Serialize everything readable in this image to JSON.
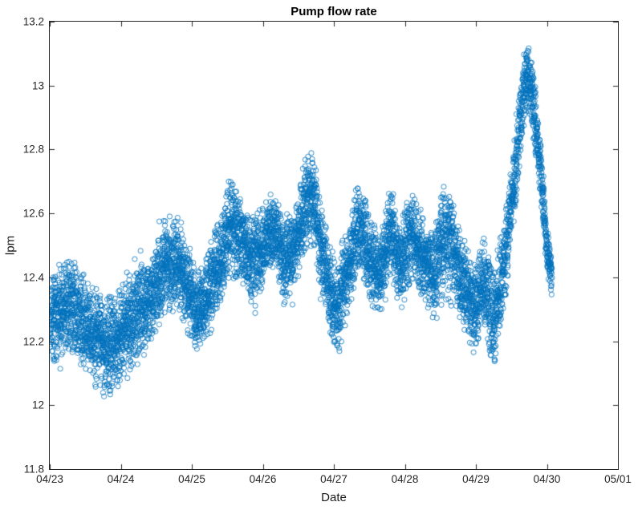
{
  "chart_data": {
    "type": "scatter",
    "title": "Pump flow rate",
    "xlabel": "Date",
    "ylabel": "lpm",
    "marker": {
      "shape": "open-circle",
      "color": "#0072BD",
      "radius_px": 3.1
    },
    "axis_color": "#262626",
    "x_tick_labels": [
      "04/23",
      "04/24",
      "04/25",
      "04/26",
      "04/27",
      "04/28",
      "04/29",
      "04/30",
      "05/01"
    ],
    "x_range_days": [
      0,
      8
    ],
    "y_ticks": [
      11.8,
      12,
      12.2,
      12.4,
      12.6,
      12.8,
      13,
      13.2
    ],
    "y_tick_labels": [
      "11.8",
      "12",
      "12.2",
      "12.4",
      "12.6",
      "12.8",
      "13",
      "13.2"
    ],
    "ylim": [
      11.8,
      13.2
    ],
    "grid": false,
    "legend": "none",
    "n_points": 7000,
    "data_span_days": [
      0,
      7.07
    ],
    "trend": {
      "comment": "Envelope of the dense noisy scatter: t in days after 04/23, center value (lpm) and half-spread (lpm). Points are distributed around mean within +/- ~1.2*spread.",
      "t_days": [
        0.0,
        0.15,
        0.3,
        0.45,
        0.6,
        0.8,
        1.0,
        1.2,
        1.4,
        1.6,
        1.75,
        1.9,
        2.05,
        2.2,
        2.4,
        2.55,
        2.7,
        2.85,
        3.0,
        3.15,
        3.3,
        3.45,
        3.6,
        3.7,
        3.8,
        3.95,
        4.05,
        4.2,
        4.35,
        4.5,
        4.65,
        4.8,
        4.95,
        5.1,
        5.25,
        5.4,
        5.55,
        5.7,
        5.85,
        6.0,
        6.1,
        6.25,
        6.4,
        6.55,
        6.65,
        6.72,
        6.8,
        6.9,
        7.0,
        7.07
      ],
      "mean_lpm": [
        12.27,
        12.29,
        12.31,
        12.27,
        12.22,
        12.17,
        12.22,
        12.27,
        12.33,
        12.42,
        12.46,
        12.4,
        12.29,
        12.33,
        12.45,
        12.57,
        12.5,
        12.45,
        12.5,
        12.55,
        12.44,
        12.5,
        12.62,
        12.66,
        12.52,
        12.35,
        12.3,
        12.44,
        12.56,
        12.46,
        12.41,
        12.54,
        12.44,
        12.52,
        12.46,
        12.4,
        12.53,
        12.47,
        12.36,
        12.3,
        12.4,
        12.26,
        12.45,
        12.72,
        12.95,
        13.04,
        12.96,
        12.76,
        12.48,
        12.4
      ],
      "spread_lpm": [
        0.14,
        0.13,
        0.13,
        0.13,
        0.14,
        0.15,
        0.14,
        0.14,
        0.13,
        0.13,
        0.14,
        0.13,
        0.12,
        0.12,
        0.13,
        0.14,
        0.13,
        0.12,
        0.12,
        0.11,
        0.12,
        0.12,
        0.13,
        0.13,
        0.12,
        0.13,
        0.14,
        0.13,
        0.14,
        0.12,
        0.11,
        0.14,
        0.12,
        0.13,
        0.12,
        0.11,
        0.17,
        0.13,
        0.12,
        0.13,
        0.12,
        0.15,
        0.13,
        0.12,
        0.11,
        0.1,
        0.1,
        0.09,
        0.08,
        0.06
      ],
      "observed_min_lpm": 11.98,
      "observed_max_lpm": 13.15
    }
  }
}
